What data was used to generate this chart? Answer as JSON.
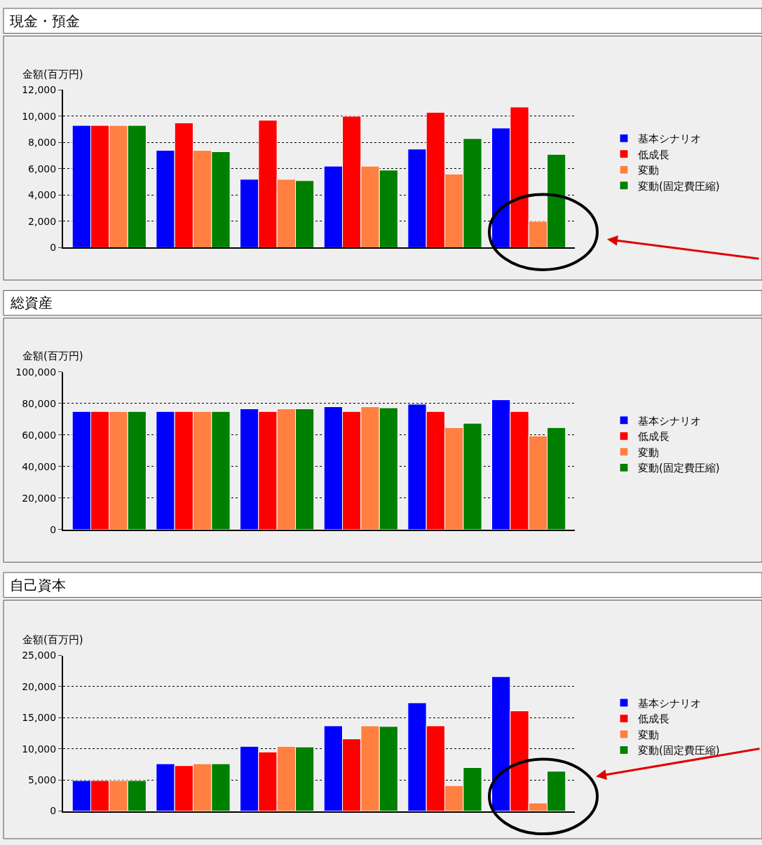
{
  "chart_data": [
    {
      "type": "bar",
      "title": "現金・預金",
      "ylabel": "金額(百万円)",
      "categories": [
        null,
        null,
        null,
        null,
        null,
        null
      ],
      "series": [
        {
          "name": "基本シナリオ",
          "color": "#0000ff",
          "values": [
            9300,
            7400,
            5200,
            6200,
            7500,
            9100
          ]
        },
        {
          "name": "低成長",
          "color": "#ff0000",
          "values": [
            9300,
            9500,
            9700,
            10000,
            10300,
            10700
          ]
        },
        {
          "name": "変動",
          "color": "#ff8040",
          "values": [
            9300,
            7400,
            5200,
            6200,
            5600,
            2000
          ]
        },
        {
          "name": "変動(固定費圧縮)",
          "color": "#008000",
          "values": [
            9300,
            7300,
            5100,
            5900,
            8300,
            7100
          ]
        }
      ],
      "ylim": [
        0,
        12000
      ],
      "yticks": [
        0,
        {
          "value": 2000,
          "label": "2,000"
        },
        {
          "value": 4000,
          "label": "4,000"
        },
        {
          "value": 6000,
          "label": "6,000"
        },
        {
          "value": 8000,
          "label": "8,000"
        },
        {
          "value": 10000,
          "label": "10,000"
        },
        {
          "value": 12000,
          "label": "12,000"
        }
      ],
      "grid": "y",
      "legend": "right"
    },
    {
      "type": "bar",
      "title": "総資産",
      "ylabel": "金額(百万円)",
      "categories": [
        null,
        null,
        null,
        null,
        null,
        null
      ],
      "series": [
        {
          "name": "基本シナリオ",
          "color": "#0000ff",
          "values": [
            75000,
            75000,
            76700,
            78000,
            79600,
            82400
          ]
        },
        {
          "name": "低成長",
          "color": "#ff0000",
          "values": [
            75000,
            75000,
            75000,
            75000,
            75000,
            75000
          ]
        },
        {
          "name": "変動",
          "color": "#ff8040",
          "values": [
            75000,
            75000,
            76700,
            78000,
            64800,
            59500
          ]
        },
        {
          "name": "変動(固定費圧縮)",
          "color": "#008000",
          "values": [
            75000,
            75000,
            76700,
            77300,
            67500,
            64800
          ]
        }
      ],
      "ylim": [
        0,
        100000
      ],
      "yticks": [
        0,
        {
          "value": 20000,
          "label": "20,000"
        },
        {
          "value": 40000,
          "label": "40,000"
        },
        {
          "value": 60000,
          "label": "60,000"
        },
        {
          "value": 80000,
          "label": "80,000"
        },
        {
          "value": 100000,
          "label": "100,000"
        }
      ],
      "grid": "y",
      "legend": "right"
    },
    {
      "type": "bar",
      "title": "自己資本",
      "ylabel": "金額(百万円)",
      "categories": [
        null,
        null,
        null,
        null,
        null,
        null
      ],
      "series": [
        {
          "name": "基本シナリオ",
          "color": "#0000ff",
          "values": [
            4900,
            7600,
            10400,
            13700,
            17400,
            21600
          ]
        },
        {
          "name": "低成長",
          "color": "#ff0000",
          "values": [
            4900,
            7300,
            9500,
            11600,
            13700,
            16100
          ]
        },
        {
          "name": "変動",
          "color": "#ff8040",
          "values": [
            4900,
            7600,
            10400,
            13700,
            4100,
            1300
          ]
        },
        {
          "name": "変動(固定費圧縮)",
          "color": "#008000",
          "values": [
            4900,
            7600,
            10300,
            13600,
            7000,
            6400
          ]
        }
      ],
      "ylim": [
        0,
        25000
      ],
      "yticks": [
        0,
        {
          "value": 5000,
          "label": "5,000"
        },
        {
          "value": 10000,
          "label": "10,000"
        },
        {
          "value": 15000,
          "label": "15,000"
        },
        {
          "value": 20000,
          "label": "20,000"
        },
        {
          "value": 25000,
          "label": "25,000"
        }
      ],
      "grid": "y",
      "legend": "right"
    }
  ]
}
